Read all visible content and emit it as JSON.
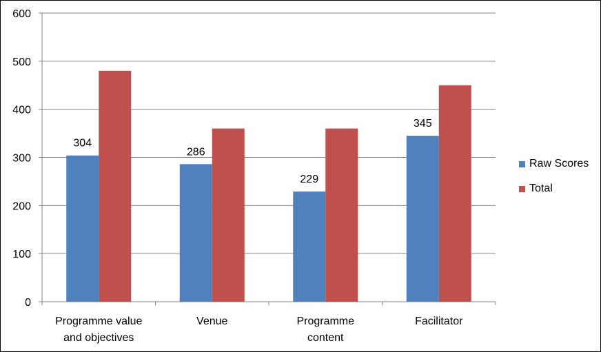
{
  "chart_data": {
    "type": "bar",
    "categories": [
      [
        "Programme value",
        "and objectives"
      ],
      [
        "Venue"
      ],
      [
        "Programme",
        "content"
      ],
      [
        "Facilitator"
      ]
    ],
    "series": [
      {
        "name": "Raw Scores",
        "values": [
          304,
          286,
          229,
          345
        ],
        "color": "#4f81bd",
        "data_labels": [
          "304",
          "286",
          "229",
          "345"
        ]
      },
      {
        "name": "Total",
        "values": [
          480,
          360,
          360,
          450
        ],
        "color": "#c0504d"
      }
    ],
    "ylim": [
      0,
      600
    ],
    "yticks": [
      "0",
      "100",
      "200",
      "300",
      "400",
      "500",
      "600"
    ],
    "grid": true,
    "legend_position": "right",
    "title": "",
    "xlabel": "",
    "ylabel": ""
  }
}
